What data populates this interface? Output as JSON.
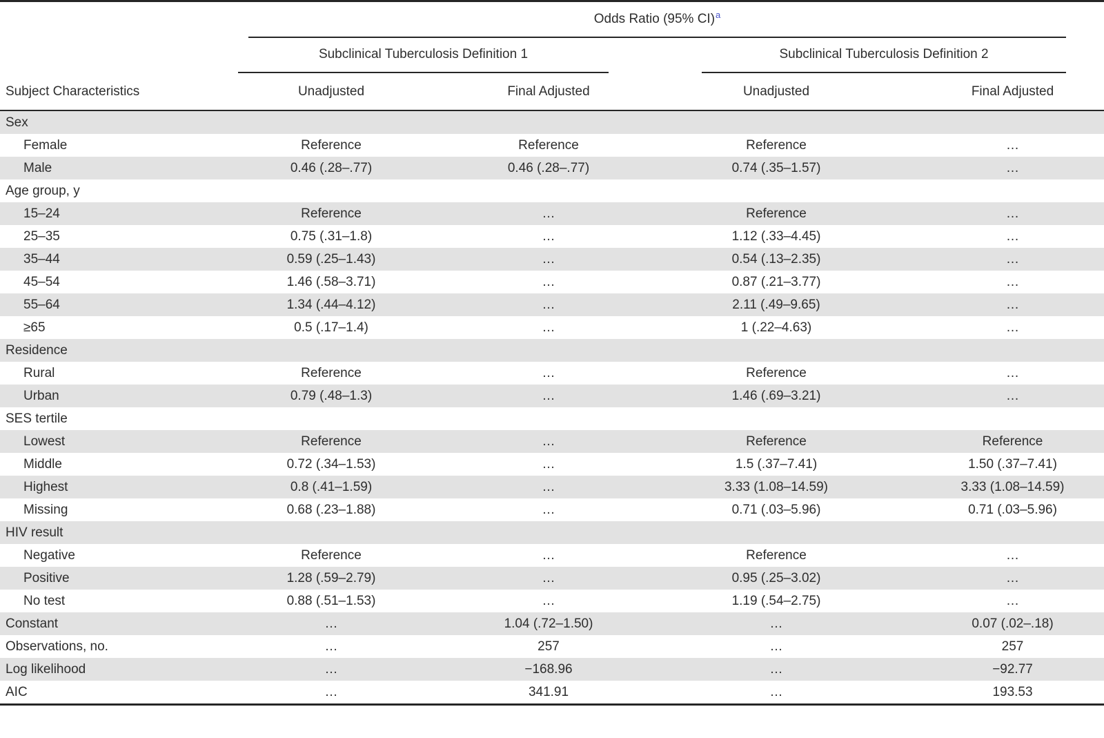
{
  "table": {
    "title_header": "Odds Ratio (95% CI)",
    "title_footnote_marker": "a",
    "stub_header": "Subject Characteristics",
    "group_headers": [
      "Subclinical Tuberculosis Definition 1",
      "Subclinical Tuberculosis Definition 2"
    ],
    "sub_headers": [
      "Unadjusted",
      "Final Adjusted",
      "Unadjusted",
      "Final Adjusted"
    ],
    "colors": {
      "band_gray": "#e2e2e2",
      "rule_dark": "#262626",
      "text": "#2e2e2e",
      "footnote_blue": "#4a54c8"
    },
    "rows": [
      {
        "label": "Sex",
        "type": "section",
        "cells": [
          "",
          "",
          "",
          ""
        ]
      },
      {
        "label": "Female",
        "type": "item",
        "cells": [
          "Reference",
          "Reference",
          "Reference",
          "…"
        ]
      },
      {
        "label": "Male",
        "type": "item",
        "cells": [
          "0.46 (.28–.77)",
          "0.46 (.28–.77)",
          "0.74 (.35–1.57)",
          "…"
        ]
      },
      {
        "label": "Age group, y",
        "type": "section",
        "cells": [
          "",
          "",
          "",
          ""
        ]
      },
      {
        "label": "15–24",
        "type": "item",
        "cells": [
          "Reference",
          "…",
          "Reference",
          "…"
        ]
      },
      {
        "label": "25–35",
        "type": "item",
        "cells": [
          "0.75 (.31–1.8)",
          "…",
          "1.12 (.33–4.45)",
          "…"
        ]
      },
      {
        "label": "35–44",
        "type": "item",
        "cells": [
          "0.59 (.25–1.43)",
          "…",
          "0.54 (.13–2.35)",
          "…"
        ]
      },
      {
        "label": "45–54",
        "type": "item",
        "cells": [
          "1.46 (.58–3.71)",
          "…",
          "0.87 (.21–3.77)",
          "…"
        ]
      },
      {
        "label": "55–64",
        "type": "item",
        "cells": [
          "1.34 (.44–4.12)",
          "…",
          "2.11 (.49–9.65)",
          "…"
        ]
      },
      {
        "label": "≥65",
        "type": "item",
        "cells": [
          "0.5 (.17–1.4)",
          "…",
          "1 (.22–4.63)",
          "…"
        ]
      },
      {
        "label": "Residence",
        "type": "section",
        "cells": [
          "",
          "",
          "",
          ""
        ]
      },
      {
        "label": "Rural",
        "type": "item",
        "cells": [
          "Reference",
          "…",
          "Reference",
          "…"
        ]
      },
      {
        "label": "Urban",
        "type": "item",
        "cells": [
          "0.79 (.48–1.3)",
          "…",
          "1.46 (.69–3.21)",
          "…"
        ]
      },
      {
        "label": "SES tertile",
        "type": "section",
        "cells": [
          "",
          "",
          "",
          ""
        ]
      },
      {
        "label": "Lowest",
        "type": "item",
        "cells": [
          "Reference",
          "…",
          "Reference",
          "Reference"
        ]
      },
      {
        "label": "Middle",
        "type": "item",
        "cells": [
          "0.72 (.34–1.53)",
          "…",
          "1.5 (.37–7.41)",
          "1.50 (.37–7.41)"
        ]
      },
      {
        "label": "Highest",
        "type": "item",
        "cells": [
          "0.8 (.41–1.59)",
          "…",
          "3.33 (1.08–14.59)",
          "3.33 (1.08–14.59)"
        ]
      },
      {
        "label": "Missing",
        "type": "item",
        "cells": [
          "0.68 (.23–1.88)",
          "…",
          "0.71 (.03–5.96)",
          "0.71 (.03–5.96)"
        ]
      },
      {
        "label": "HIV result",
        "type": "section",
        "cells": [
          "",
          "",
          "",
          ""
        ]
      },
      {
        "label": "Negative",
        "type": "item",
        "cells": [
          "Reference",
          "…",
          "Reference",
          "…"
        ]
      },
      {
        "label": "Positive",
        "type": "item",
        "cells": [
          "1.28 (.59–2.79)",
          "…",
          "0.95 (.25–3.02)",
          "…"
        ]
      },
      {
        "label": "No test",
        "type": "item",
        "cells": [
          "0.88 (.51–1.53)",
          "…",
          "1.19 (.54–2.75)",
          "…"
        ]
      },
      {
        "label": "Constant",
        "type": "footer",
        "cells": [
          "…",
          "1.04 (.72–1.50)",
          "…",
          "0.07 (.02–.18)"
        ]
      },
      {
        "label": "Observations, no.",
        "type": "footer",
        "cells": [
          "…",
          "257",
          "…",
          "257"
        ]
      },
      {
        "label": "Log likelihood",
        "type": "footer",
        "cells": [
          "…",
          "−168.96",
          "…",
          "−92.77"
        ]
      },
      {
        "label": "AIC",
        "type": "footer",
        "cells": [
          "…",
          "341.91",
          "…",
          "193.53"
        ]
      }
    ]
  }
}
